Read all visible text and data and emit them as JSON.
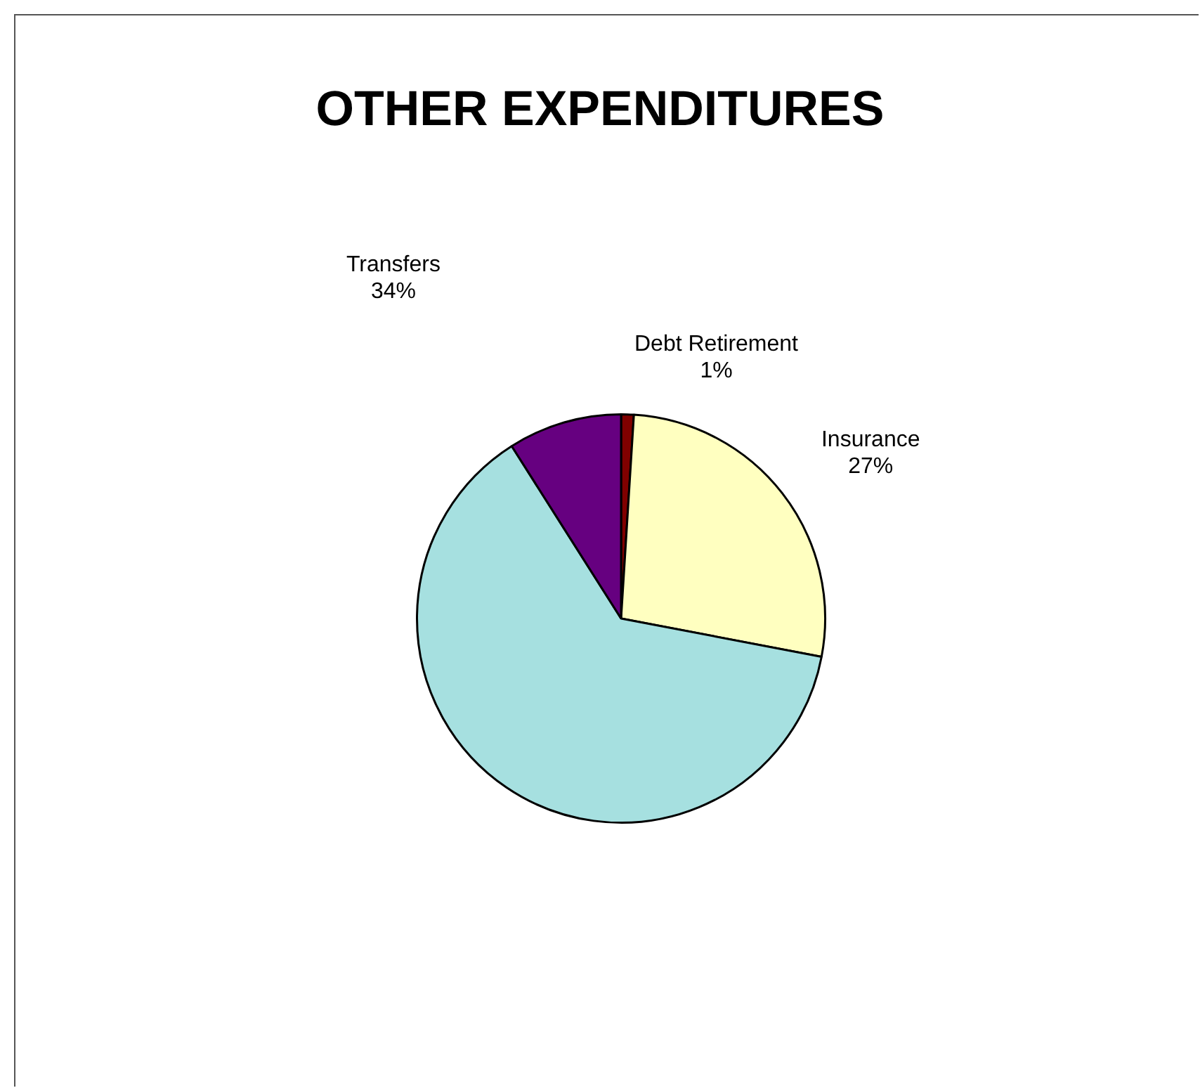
{
  "chart_data": {
    "type": "pie",
    "title": "OTHER EXPENDITURES",
    "categories": [
      "Debt Retirement",
      "Insurance",
      null,
      null
    ],
    "values": [
      1,
      27,
      63,
      9
    ],
    "colors": [
      "#800000",
      "#ffffc0",
      "#a6e0e0",
      "#660080"
    ],
    "value_labels": [
      "1%",
      "27%",
      null,
      null
    ],
    "annotations": [
      "Transfers\n34%"
    ]
  }
}
